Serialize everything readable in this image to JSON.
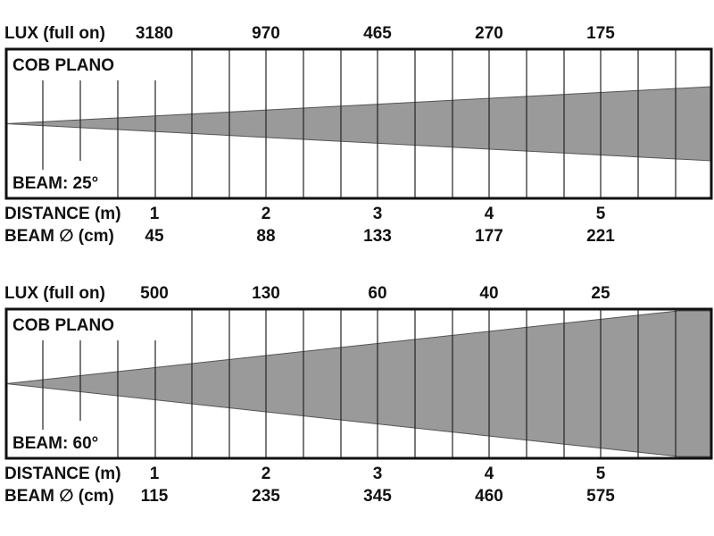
{
  "panels": [
    {
      "lux_label": "LUX (full on)",
      "lux": [
        3180,
        970,
        465,
        270,
        175
      ],
      "title": "COB PLANO",
      "beam_angle": "BEAM: 25°",
      "distance_label": "DISTANCE (m)",
      "distances": [
        1,
        2,
        3,
        4,
        5
      ],
      "beam_label": "BEAM ∅ (cm)",
      "beam_diameters": [
        45,
        88,
        133,
        177,
        221
      ]
    },
    {
      "lux_label": "LUX (full on)",
      "lux": [
        500,
        130,
        60,
        40,
        25
      ],
      "title": "COB PLANO",
      "beam_angle": "BEAM: 60°",
      "distance_label": "DISTANCE (m)",
      "distances": [
        1,
        2,
        3,
        4,
        5
      ],
      "beam_label": "BEAM ∅ (cm)",
      "beam_diameters": [
        115,
        235,
        345,
        460,
        575
      ]
    }
  ]
}
